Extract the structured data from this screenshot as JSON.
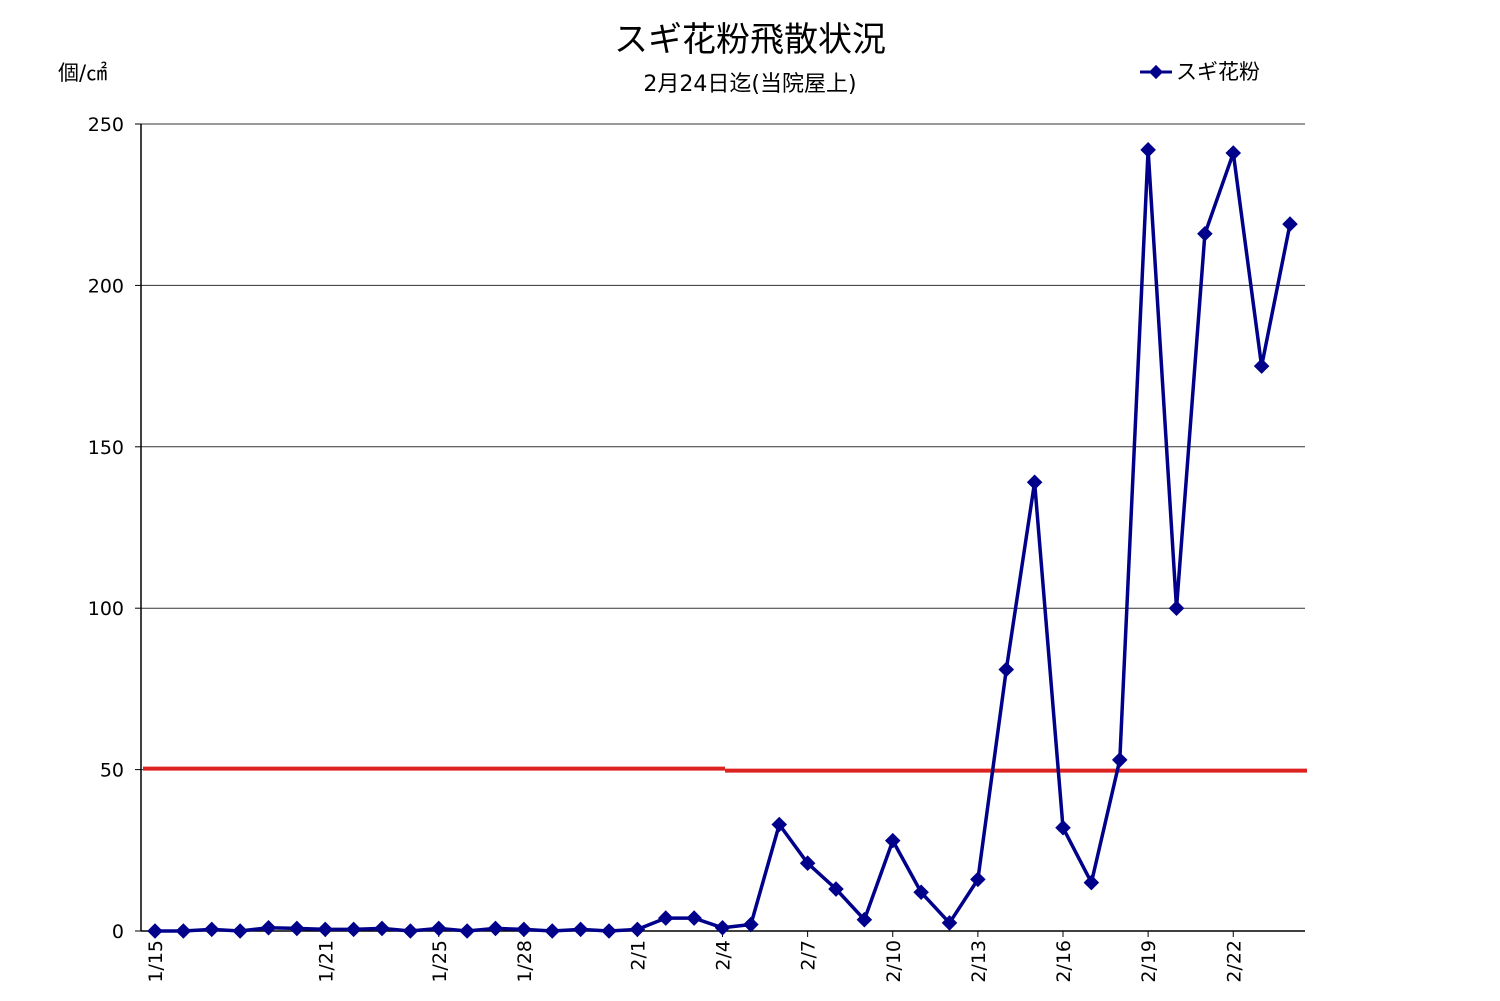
{
  "chart_data": {
    "type": "line",
    "title": "スギ花粉飛散状況",
    "subtitle": "2月24日迄(当院屋上)",
    "ylabel": "個/㎠",
    "ylim": [
      0,
      250
    ],
    "yticks": [
      0,
      50,
      100,
      150,
      200,
      250
    ],
    "grid": true,
    "legend_position": "top-right",
    "x": [
      "1/15",
      "1/16",
      "1/17",
      "1/18",
      "1/19",
      "1/20",
      "1/21",
      "1/22",
      "1/23",
      "1/24",
      "1/25",
      "1/26",
      "1/27",
      "1/28",
      "1/29",
      "1/30",
      "1/31",
      "2/1",
      "2/2",
      "2/3",
      "2/4",
      "2/5",
      "2/6",
      "2/7",
      "2/8",
      "2/9",
      "2/10",
      "2/11",
      "2/12",
      "2/13",
      "2/14",
      "2/15",
      "2/16",
      "2/17",
      "2/18",
      "2/19",
      "2/20",
      "2/21",
      "2/22",
      "2/23",
      "2/24"
    ],
    "xtick_labels": [
      "1/15",
      "1/21",
      "1/25",
      "1/28",
      "2/1",
      "2/4",
      "2/7",
      "2/10",
      "2/13",
      "2/16",
      "2/19",
      "2/22"
    ],
    "series": [
      {
        "name": "スギ花粉",
        "color": "#00008b",
        "marker": "diamond",
        "values": [
          0,
          0,
          0.5,
          0,
          1,
          0.8,
          0.5,
          0.5,
          0.8,
          0,
          0.8,
          0,
          0.8,
          0.5,
          0,
          0.5,
          0,
          0.5,
          4,
          4,
          1,
          2,
          33,
          21,
          13,
          3.5,
          28,
          12,
          2.5,
          16,
          81,
          139,
          32,
          15,
          53,
          242,
          100,
          216,
          241,
          175,
          219
        ]
      }
    ],
    "reference_line": {
      "value": 50,
      "color": "#dd2222"
    }
  }
}
